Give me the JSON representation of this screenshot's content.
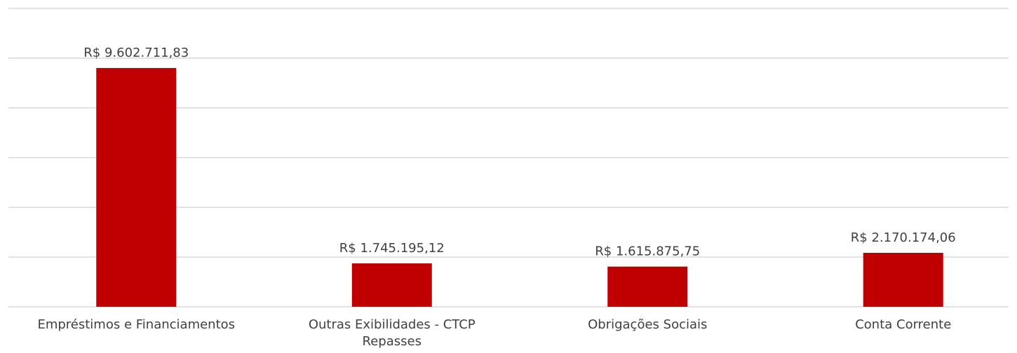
{
  "chart_data": {
    "type": "bar",
    "categories": [
      "Empréstimos e Financiamentos",
      "Outras Exibilidades - CTCP Repasses",
      "Obrigações Sociais",
      "Conta Corrente"
    ],
    "values": [
      9602711.83,
      1745195.12,
      1615875.75,
      2170174.06
    ],
    "value_labels": [
      "R$ 9.602.711,83",
      "R$ 1.745.195,12",
      "R$ 1.615.875,75",
      "R$ 2.170.174,06"
    ],
    "color": "#c00000",
    "ylim": [
      0,
      12000000
    ],
    "yticks": [
      0,
      2000000,
      4000000,
      6000000,
      8000000,
      10000000,
      12000000
    ],
    "grid": true
  }
}
